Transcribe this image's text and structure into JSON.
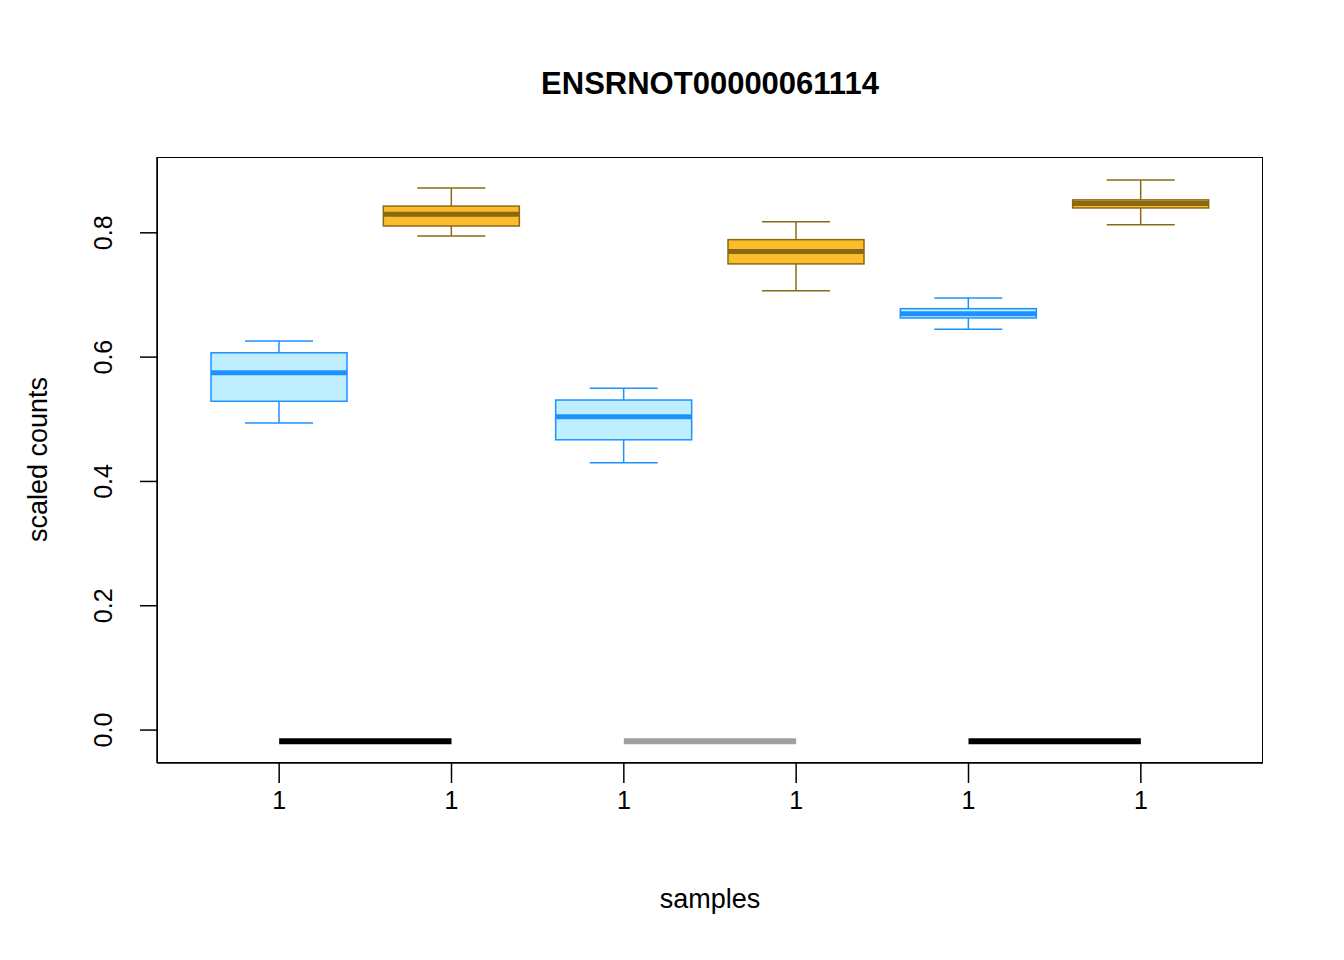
{
  "chart_data": {
    "type": "boxplot",
    "title": "ENSRNOT00000061114",
    "x_label": "samples",
    "y_label": "scaled counts",
    "categories": [
      "1",
      "1",
      "1",
      "1",
      "1",
      "1"
    ],
    "boxes": [
      {
        "whisker_low": 0.494,
        "q1": 0.529,
        "median": 0.575,
        "q3": 0.607,
        "whisker_high": 0.626,
        "color": "#1e90ff"
      },
      {
        "whisker_low": 0.795,
        "q1": 0.811,
        "median": 0.83,
        "q3": 0.843,
        "whisker_high": 0.872,
        "color": "#8b6914"
      },
      {
        "whisker_low": 0.43,
        "q1": 0.467,
        "median": 0.504,
        "q3": 0.531,
        "whisker_high": 0.55,
        "color": "#1e90ff"
      },
      {
        "whisker_low": 0.707,
        "q1": 0.75,
        "median": 0.77,
        "q3": 0.789,
        "whisker_high": 0.818,
        "color": "#8b6914"
      },
      {
        "whisker_low": 0.645,
        "q1": 0.663,
        "median": 0.67,
        "q3": 0.678,
        "whisker_high": 0.695,
        "color": "#1e90ff"
      },
      {
        "whisker_low": 0.813,
        "q1": 0.84,
        "median": 0.847,
        "q3": 0.853,
        "whisker_high": 0.885,
        "color": "#8b6914"
      }
    ],
    "segments": [
      {
        "from": 0,
        "to": 1,
        "y": -0.018,
        "color": "#000000"
      },
      {
        "from": 2,
        "to": 3,
        "y": -0.018,
        "color": "#a0a0a0"
      },
      {
        "from": 4,
        "to": 5,
        "y": -0.018,
        "color": "#000000"
      }
    ],
    "ylim": [
      -0.053,
      0.922
    ],
    "yticks": [
      {
        "value": 0,
        "label": "0.0"
      },
      0.2,
      0.4,
      0.6,
      0.8
    ]
  }
}
